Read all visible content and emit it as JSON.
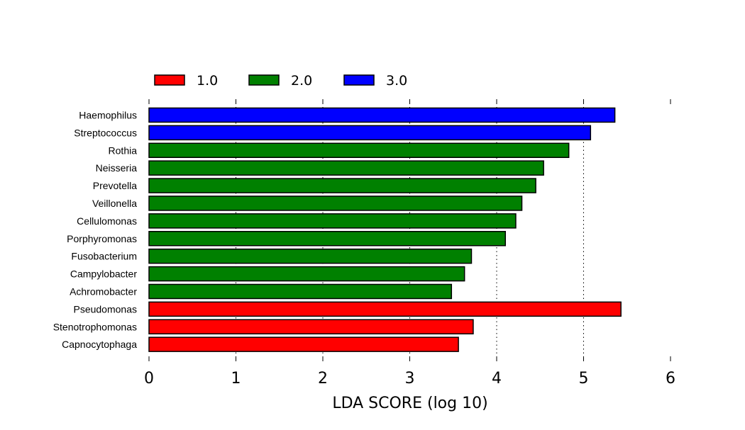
{
  "chart_data": {
    "type": "bar",
    "orientation": "horizontal",
    "title": "",
    "xlabel": "LDA SCORE (log 10)",
    "ylabel": "",
    "xlim": [
      0,
      6
    ],
    "xticks": [
      "0",
      "1",
      "2",
      "3",
      "4",
      "5",
      "6"
    ],
    "grid": "vertical dotted lines at 1 through 5",
    "legend_placement": "top-left, horizontal",
    "legend": [
      {
        "name": "1.0",
        "color": "#ff0000"
      },
      {
        "name": "2.0",
        "color": "#008000"
      },
      {
        "name": "3.0",
        "color": "#0000ff"
      }
    ],
    "categories": [
      "Haemophilus",
      "Streptococcus",
      "Rothia",
      "Neisseria",
      "Prevotella",
      "Veillonella",
      "Cellulomonas",
      "Porphyromonas",
      "Fusobacterium",
      "Campylobacter",
      "Achromobacter",
      "Pseudomonas",
      "Stenotrophomonas",
      "Capnocytophaga"
    ],
    "values": [
      5.36,
      5.08,
      4.83,
      4.54,
      4.45,
      4.29,
      4.22,
      4.1,
      3.71,
      3.63,
      3.48,
      5.43,
      3.73,
      3.56
    ],
    "groups": [
      "3.0",
      "3.0",
      "2.0",
      "2.0",
      "2.0",
      "2.0",
      "2.0",
      "2.0",
      "2.0",
      "2.0",
      "2.0",
      "1.0",
      "1.0",
      "1.0"
    ]
  }
}
